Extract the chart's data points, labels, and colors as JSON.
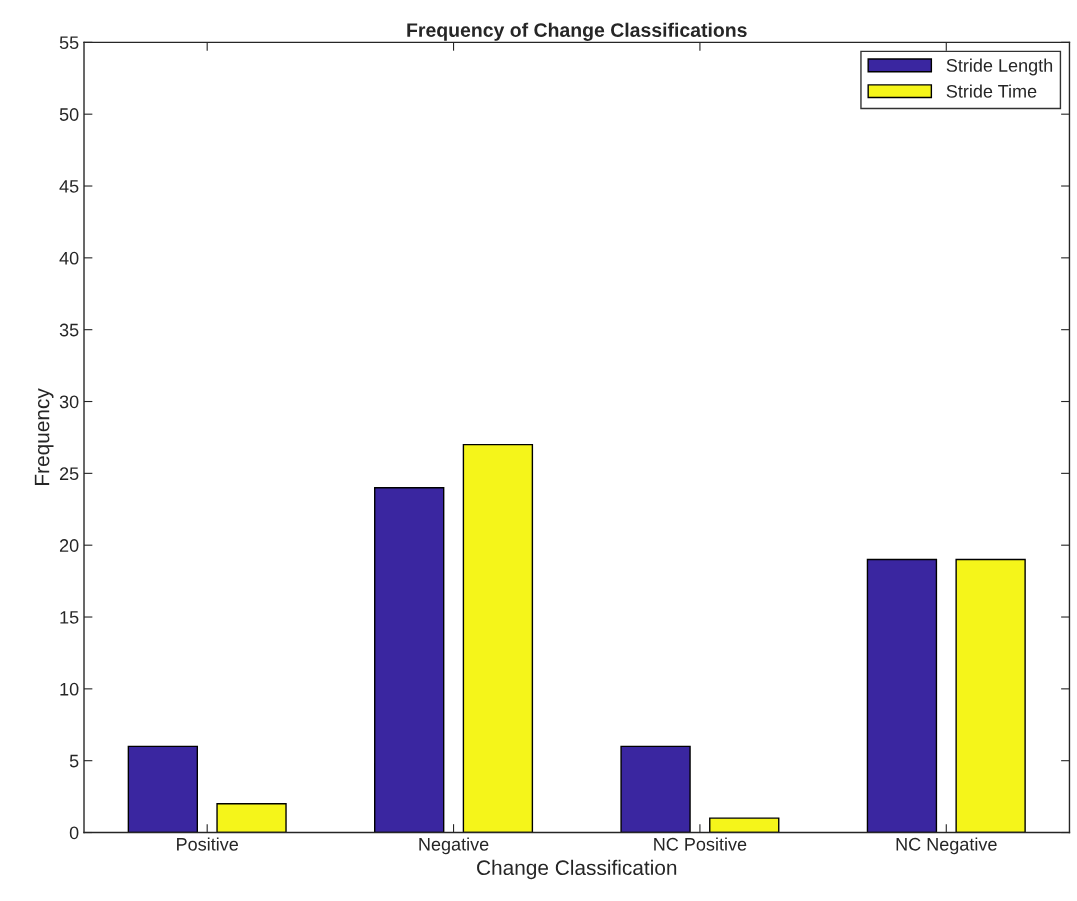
{
  "chart_data": {
    "type": "bar",
    "title": "Frequency of Change Classifications",
    "xlabel": "Change Classification",
    "ylabel": "Frequency",
    "categories": [
      "Positive",
      "Negative",
      "NC Positive",
      "NC Negative"
    ],
    "series": [
      {
        "name": "Stride Length",
        "color": "#3a26a0",
        "values": [
          6,
          24,
          6,
          19
        ]
      },
      {
        "name": "Stride Time",
        "color": "#f5f51a",
        "values": [
          2,
          27,
          1,
          19
        ]
      }
    ],
    "ylim": [
      0,
      55
    ],
    "yticks": [
      0,
      5,
      10,
      15,
      20,
      25,
      30,
      35,
      40,
      45,
      50,
      55
    ],
    "grid": false,
    "legend": "top right"
  }
}
